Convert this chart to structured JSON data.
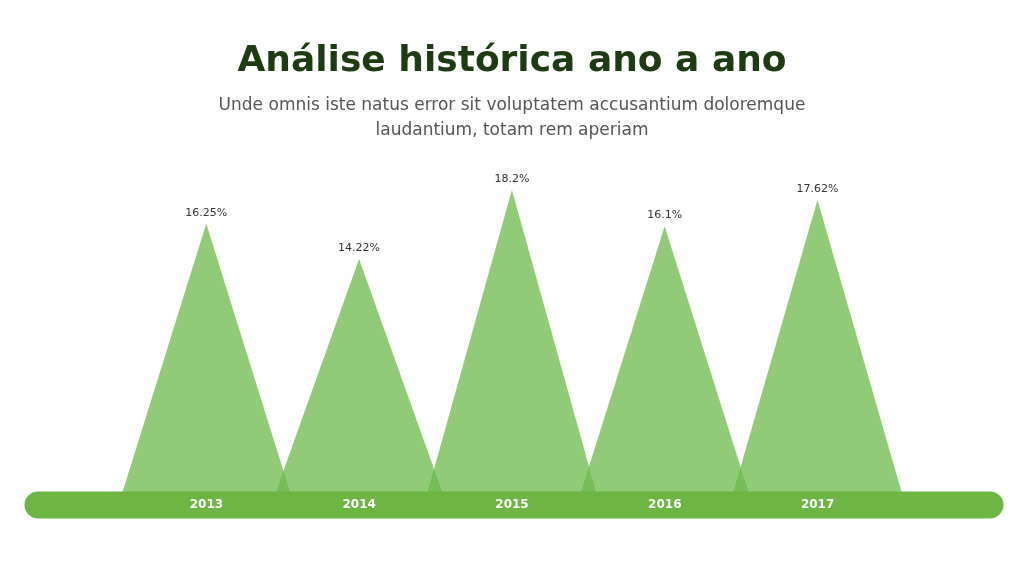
{
  "chart_data": {
    "type": "bar",
    "title": "Análise histórica ano a ano",
    "subtitle": "Unde omnis iste natus error sit voluptatem accusantium doloremque laudantium, totam rem aperiam",
    "categories": [
      "2013",
      "2014",
      "2015",
      "2016",
      "2017"
    ],
    "values": [
      16.25,
      14.22,
      18.2,
      16.1,
      17.62
    ],
    "value_labels": [
      "16.25%",
      "14.22%",
      "18.2%",
      "16.1%",
      "17.62%"
    ],
    "color": "#6cba4a",
    "grid": false,
    "legend": false,
    "tick_labels": "x"
  }
}
